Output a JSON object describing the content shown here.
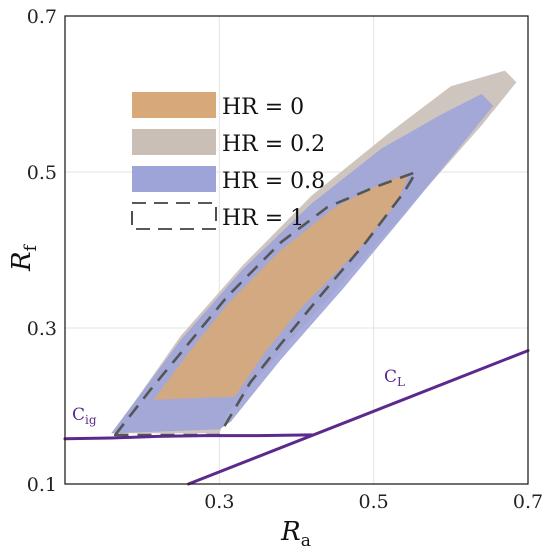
{
  "chart_data": {
    "type": "area",
    "xlabel": {
      "base": "R",
      "sub": "a"
    },
    "ylabel": {
      "base": "R",
      "sub": "f"
    },
    "xlim": [
      0.1,
      0.7
    ],
    "ylim": [
      0.1,
      0.7
    ],
    "xticks": [
      "0.3",
      "0.5",
      "0.7"
    ],
    "yticks": [
      "0.1",
      "0.3",
      "0.5",
      "0.7"
    ],
    "grid": true,
    "legend_position": "upper-left",
    "series": [
      {
        "name": "HR = 0.2",
        "color": "#c9bfb7",
        "style": "fill",
        "points": [
          [
            0.16,
            0.165
          ],
          [
            0.19,
            0.205
          ],
          [
            0.25,
            0.29
          ],
          [
            0.33,
            0.38
          ],
          [
            0.42,
            0.47
          ],
          [
            0.52,
            0.55
          ],
          [
            0.6,
            0.61
          ],
          [
            0.67,
            0.63
          ],
          [
            0.685,
            0.615
          ],
          [
            0.64,
            0.56
          ],
          [
            0.56,
            0.47
          ],
          [
            0.47,
            0.37
          ],
          [
            0.38,
            0.27
          ],
          [
            0.31,
            0.19
          ],
          [
            0.3,
            0.165
          ]
        ]
      },
      {
        "name": "HR = 0.8",
        "color": "#9fa4d8",
        "style": "fill",
        "points": [
          [
            0.16,
            0.165
          ],
          [
            0.19,
            0.205
          ],
          [
            0.25,
            0.285
          ],
          [
            0.33,
            0.375
          ],
          [
            0.42,
            0.46
          ],
          [
            0.51,
            0.53
          ],
          [
            0.59,
            0.575
          ],
          [
            0.64,
            0.6
          ],
          [
            0.655,
            0.585
          ],
          [
            0.61,
            0.53
          ],
          [
            0.54,
            0.445
          ],
          [
            0.46,
            0.35
          ],
          [
            0.38,
            0.26
          ],
          [
            0.315,
            0.18
          ],
          [
            0.3,
            0.17
          ]
        ]
      },
      {
        "name": "HR = 0",
        "color": "#d8a978",
        "style": "fill",
        "points": [
          [
            0.215,
            0.208
          ],
          [
            0.26,
            0.268
          ],
          [
            0.31,
            0.33
          ],
          [
            0.38,
            0.4
          ],
          [
            0.45,
            0.455
          ],
          [
            0.52,
            0.49
          ],
          [
            0.545,
            0.495
          ],
          [
            0.53,
            0.46
          ],
          [
            0.48,
            0.4
          ],
          [
            0.41,
            0.33
          ],
          [
            0.36,
            0.27
          ],
          [
            0.32,
            0.212
          ]
        ]
      },
      {
        "name": "HR = 1",
        "color": "#555555",
        "style": "dashed",
        "points": [
          [
            0.165,
            0.163
          ],
          [
            0.21,
            0.22
          ],
          [
            0.26,
            0.28
          ],
          [
            0.31,
            0.34
          ],
          [
            0.38,
            0.41
          ],
          [
            0.44,
            0.455
          ],
          [
            0.5,
            0.48
          ],
          [
            0.555,
            0.5
          ],
          [
            0.54,
            0.475
          ],
          [
            0.49,
            0.41
          ],
          [
            0.43,
            0.34
          ],
          [
            0.38,
            0.28
          ],
          [
            0.34,
            0.23
          ],
          [
            0.3,
            0.163
          ]
        ]
      }
    ],
    "curves": [
      {
        "name": "C_ig",
        "label": {
          "base": "C",
          "sub": "ig"
        },
        "color": "#5b2a8c",
        "points": [
          [
            0.1,
            0.158
          ],
          [
            0.16,
            0.159
          ],
          [
            0.22,
            0.161
          ],
          [
            0.28,
            0.162
          ],
          [
            0.35,
            0.162
          ],
          [
            0.42,
            0.163
          ]
        ]
      },
      {
        "name": "C_L",
        "label": {
          "base": "C",
          "sub": "L"
        },
        "color": "#5b2a8c",
        "points": [
          [
            0.26,
            0.1
          ],
          [
            0.7,
            0.271
          ]
        ]
      }
    ],
    "legend": [
      {
        "label": "HR = 0",
        "color": "#d8a978",
        "style": "fill"
      },
      {
        "label": "HR = 0.2",
        "color": "#c9bfb7",
        "style": "fill"
      },
      {
        "label": "HR = 0.8",
        "color": "#9fa4d8",
        "style": "fill"
      },
      {
        "label": "HR = 1",
        "color": "#222222",
        "style": "dashed"
      }
    ]
  }
}
